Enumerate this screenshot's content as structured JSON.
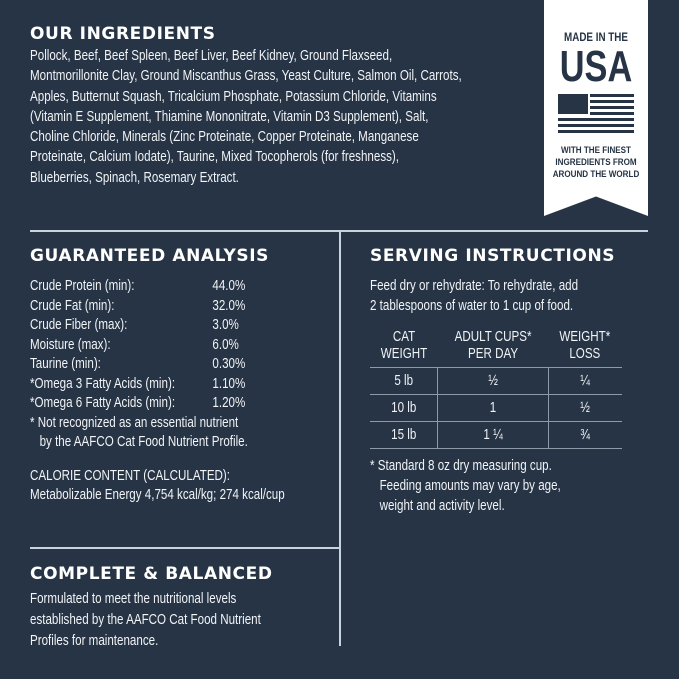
{
  "ingredients": {
    "title": "OUR INGREDIENTS",
    "lines": [
      "Pollock, Beef, Beef Spleen, Beef Liver, Beef Kidney, Ground Flaxseed,",
      "Montmorillonite Clay, Ground Miscanthus Grass, Yeast Culture, Salmon Oil, Carrots,",
      "Apples, Butternut Squash, Tricalcium Phosphate, Potassium Chloride, Vitamins",
      "(Vitamin E Supplement, Thiamine Mononitrate, Vitamin D3 Supplement), Salt,",
      "Choline Chloride, Minerals (Zinc Proteinate, Copper Proteinate, Manganese",
      "Proteinate, Calcium Iodate), Taurine, Mixed Tocopherols (for freshness),",
      "Blueberries, Spinach, Rosemary Extract."
    ]
  },
  "badge": {
    "line1": "MADE IN THE",
    "line2": "USA",
    "line3": "WITH THE FINEST",
    "line4": "INGREDIENTS FROM",
    "line5": "AROUND THE WORLD",
    "icon": "us-flag-icon"
  },
  "analysis": {
    "title": "GUARANTEED ANALYSIS",
    "rows": [
      {
        "k": "Crude Protein (min):",
        "v": "44.0%"
      },
      {
        "k": "Crude Fat (min):",
        "v": "32.0%"
      },
      {
        "k": "Crude Fiber (max):",
        "v": "3.0%"
      },
      {
        "k": "Moisture (max):",
        "v": "6.0%"
      },
      {
        "k": "Taurine (min):",
        "v": "0.30%"
      },
      {
        "k": "*Omega 3 Fatty Acids (min):",
        "v": "1.10%"
      },
      {
        "k": "*Omega 6 Fatty Acids (min):",
        "v": "1.20%"
      }
    ],
    "note1": "* Not recognized as an essential nutrient",
    "note2": "by the AAFCO Cat Food Nutrient Profile.",
    "calorie_title": "CALORIE CONTENT (CALCULATED):",
    "calorie_value": "Metabolizable Energy 4,754 kcal/kg; 274 kcal/cup"
  },
  "serving": {
    "title": "SERVING INSTRUCTIONS",
    "line1": "Feed dry or rehydrate: To rehydrate, add",
    "line2": "2 tablespoons of water to 1 cup of food.",
    "headers": [
      [
        "CAT",
        "WEIGHT"
      ],
      [
        "ADULT CUPS*",
        "PER DAY"
      ],
      [
        "WEIGHT*",
        "LOSS"
      ]
    ],
    "rows": [
      [
        "5 lb",
        "½",
        "¼"
      ],
      [
        "10 lb",
        "1",
        "½"
      ],
      [
        "15 lb",
        "1 ¼",
        "¾"
      ]
    ],
    "note1": "* Standard 8 oz dry measuring cup.",
    "note2": "Feeding amounts may vary by age,",
    "note3": "weight and activity level."
  },
  "complete": {
    "title": "COMPLETE & BALANCED",
    "lines": [
      "Formulated to meet the nutritional levels",
      "established by the AAFCO Cat Food Nutrient",
      "Profiles for maintenance."
    ]
  }
}
